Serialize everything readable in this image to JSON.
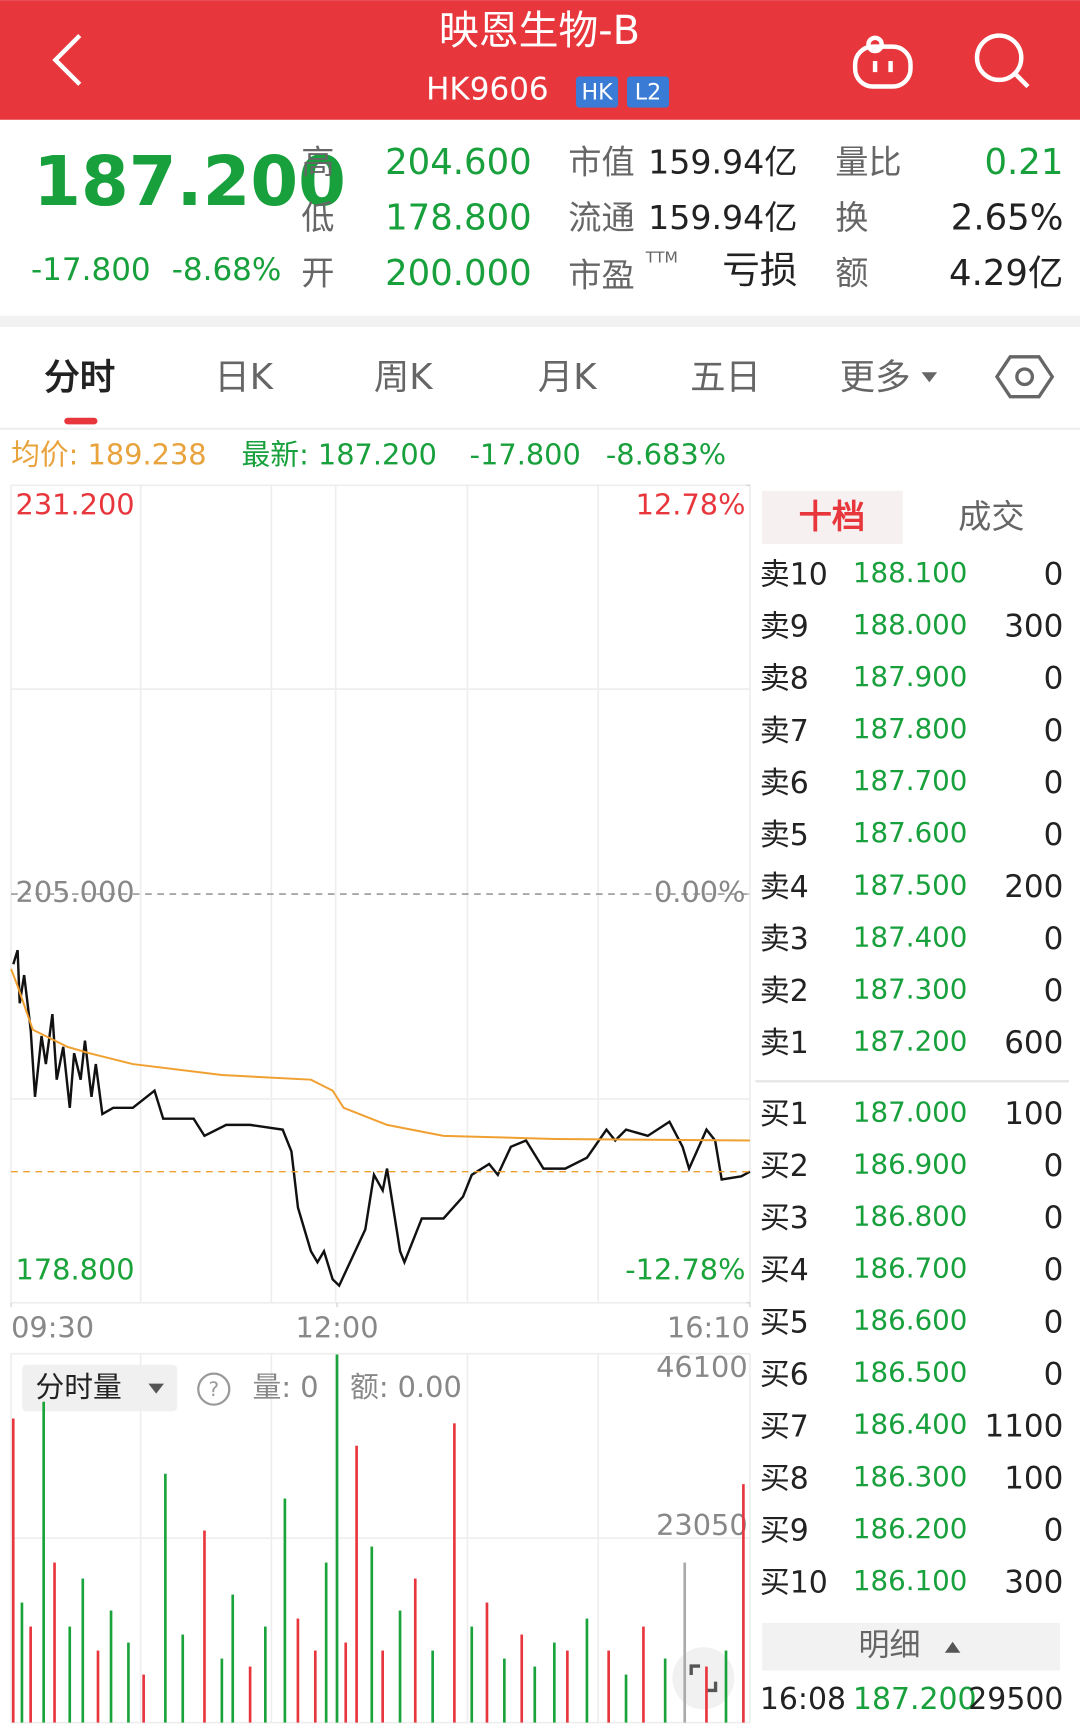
{
  "header": {
    "title": "映恩生物-B",
    "code": "HK9606",
    "badges": [
      "HK",
      "L2"
    ]
  },
  "quote": {
    "price": "187.200",
    "change": "-17.800",
    "change_pct": "-8.68%",
    "stats": [
      {
        "label": "高",
        "value": "204.600"
      },
      {
        "label": "低",
        "value": "178.800"
      },
      {
        "label": "开",
        "value": "200.000"
      },
      {
        "label": "市值",
        "value": "159.94亿"
      },
      {
        "label": "流通",
        "value": "159.94亿"
      },
      {
        "label": "市盈",
        "sup": "TTM",
        "value": "亏损"
      },
      {
        "label": "量比",
        "value": "0.21"
      },
      {
        "label": "换",
        "value": "2.65%"
      },
      {
        "label": "额",
        "value": "4.29亿"
      }
    ]
  },
  "tabs": [
    "分时",
    "日K",
    "周K",
    "月K",
    "五日",
    "更多"
  ],
  "info_bar": {
    "avg": "均价: 189.238",
    "latest": "最新: 187.200",
    "change": "-17.800",
    "pct": "-8.683%"
  },
  "chart_data": [
    {
      "type": "line",
      "xlim": [
        0,
        340
      ],
      "xticks": [
        {
          "value": 0,
          "label": "09:30"
        },
        {
          "value": 150,
          "label": "12:00"
        },
        {
          "value": 340,
          "label": "16:10"
        }
      ],
      "ylim": [
        178.8,
        231.2
      ],
      "yticks": [
        {
          "value": 231.2,
          "label": "231.200"
        },
        {
          "value": 205,
          "label": "205.000"
        },
        {
          "value": 178.8,
          "label": "178.800"
        }
      ],
      "y2lim": [
        -12.78,
        12.78
      ],
      "y2ticks": [
        {
          "value": 12.78,
          "label": "12.78%"
        },
        {
          "value": 0,
          "label": "0.00%"
        },
        {
          "value": -12.78,
          "label": "-12.78%"
        }
      ],
      "series": [
        {
          "color": "#111111",
          "x": [
            1,
            3,
            4,
            6,
            9,
            11,
            14,
            16,
            19,
            21,
            24,
            27,
            29,
            32,
            34,
            37,
            39,
            42,
            47,
            56,
            66,
            70,
            84,
            89,
            99,
            110,
            125,
            129,
            132,
            138,
            141,
            144,
            148,
            151,
            156,
            163,
            167,
            171,
            173,
            179,
            181,
            189,
            199,
            208,
            212,
            220,
            224,
            230,
            237,
            245,
            255,
            265,
            274,
            278,
            283,
            293,
            303,
            309,
            312,
            320,
            324,
            327,
            336,
            340
          ],
          "values": [
            200.5,
            201.4,
            198.0,
            199.8,
            196.3,
            192.0,
            195.9,
            194.1,
            197.3,
            193.1,
            195.2,
            191.3,
            194.8,
            193.1,
            195.6,
            192.0,
            194.1,
            190.9,
            191.3,
            191.3,
            192.4,
            190.6,
            190.6,
            189.5,
            190.2,
            190.2,
            189.9,
            188.5,
            184.9,
            182.1,
            181.4,
            182.1,
            180.3,
            179.9,
            181.4,
            183.5,
            187.0,
            186.0,
            187.4,
            182.1,
            181.4,
            184.2,
            184.2,
            185.6,
            187.0,
            187.7,
            187.0,
            188.8,
            189.2,
            187.4,
            187.4,
            188.1,
            189.9,
            189.2,
            189.9,
            189.5,
            190.4,
            188.8,
            187.4,
            189.9,
            189.2,
            186.7,
            186.9,
            187.2
          ]
        },
        {
          "color": "#f0a030",
          "x": [
            0,
            3,
            10,
            26,
            36,
            56,
            97,
            138,
            148,
            153,
            173,
            199,
            250,
            340
          ],
          "values": [
            200.2,
            199.1,
            196.3,
            195.2,
            194.8,
            194.1,
            193.4,
            193.1,
            192.4,
            191.3,
            190.2,
            189.5,
            189.3,
            189.2
          ]
        }
      ]
    },
    {
      "type": "bar",
      "xlim": [
        0,
        340
      ],
      "ylim": [
        0,
        46100
      ],
      "yticks": [
        23050,
        46100
      ],
      "title": "分时量",
      "volume_label": "量: 0",
      "amount_label": "额: 0.00",
      "x": [
        1,
        5,
        9,
        15,
        20,
        27,
        33,
        40,
        46,
        54,
        61,
        71,
        79,
        89,
        97,
        102,
        110,
        117,
        126,
        132,
        140,
        145,
        150,
        154,
        159,
        166,
        171,
        179,
        186,
        194,
        204,
        212,
        219,
        227,
        235,
        241,
        250,
        256,
        265,
        275,
        283,
        291,
        301,
        310,
        320,
        329,
        337
      ],
      "values": [
        38000,
        15000,
        12000,
        40100,
        20000,
        12000,
        18000,
        9000,
        14000,
        10000,
        6000,
        31100,
        11000,
        24000,
        8000,
        16000,
        7000,
        12000,
        28000,
        13000,
        9000,
        20000,
        46000,
        10000,
        34600,
        22000,
        9000,
        14000,
        18000,
        9000,
        37400,
        12000,
        15000,
        8000,
        11000,
        7000,
        10000,
        9000,
        13000,
        9000,
        6000,
        12000,
        8000,
        20000,
        7000,
        9000,
        29800
      ],
      "colors": [
        "#e8363d",
        "#1aa33a",
        "#e8363d",
        "#1aa33a",
        "#e8363d",
        "#1aa33a",
        "#1aa33a",
        "#e8363d",
        "#1aa33a",
        "#1aa33a",
        "#e8363d",
        "#1aa33a",
        "#1aa33a",
        "#e8363d",
        "#1aa33a",
        "#1aa33a",
        "#e8363d",
        "#1aa33a",
        "#1aa33a",
        "#e8363d",
        "#e8363d",
        "#1aa33a",
        "#1aa33a",
        "#e8363d",
        "#e8363d",
        "#1aa33a",
        "#e8363d",
        "#1aa33a",
        "#e8363d",
        "#1aa33a",
        "#e8363d",
        "#1aa33a",
        "#e8363d",
        "#1aa33a",
        "#e8363d",
        "#1aa33a",
        "#1aa33a",
        "#e8363d",
        "#1aa33a",
        "#e8363d",
        "#1aa33a",
        "#e8363d",
        "#1aa33a",
        "#aaaaaa",
        "#e8363d",
        "#1aa33a",
        "#e8363d"
      ]
    }
  ],
  "order_book": {
    "tabs": [
      "十档",
      "成交"
    ],
    "asks": [
      [
        "卖10",
        "188.100",
        "0"
      ],
      [
        "卖9",
        "188.000",
        "300"
      ],
      [
        "卖8",
        "187.900",
        "0"
      ],
      [
        "卖7",
        "187.800",
        "0"
      ],
      [
        "卖6",
        "187.700",
        "0"
      ],
      [
        "卖5",
        "187.600",
        "0"
      ],
      [
        "卖4",
        "187.500",
        "200"
      ],
      [
        "卖3",
        "187.400",
        "0"
      ],
      [
        "卖2",
        "187.300",
        "0"
      ],
      [
        "卖1",
        "187.200",
        "600"
      ]
    ],
    "bids": [
      [
        "买1",
        "187.000",
        "100"
      ],
      [
        "买2",
        "186.900",
        "0"
      ],
      [
        "买3",
        "186.800",
        "0"
      ],
      [
        "买4",
        "186.700",
        "0"
      ],
      [
        "买5",
        "186.600",
        "0"
      ],
      [
        "买6",
        "186.500",
        "0"
      ],
      [
        "买7",
        "186.400",
        "1100"
      ],
      [
        "买8",
        "186.300",
        "100"
      ],
      [
        "买9",
        "186.200",
        "0"
      ],
      [
        "买10",
        "186.100",
        "300"
      ]
    ],
    "detail_button": "明细",
    "trade": [
      "16:08",
      "187.200",
      "29500"
    ]
  }
}
